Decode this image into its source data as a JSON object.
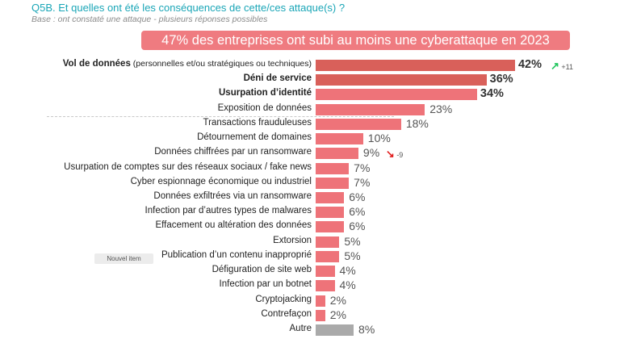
{
  "header": {
    "question": "Q5B. Et quelles ont été les conséquences de cette/ces attaque(s) ?",
    "base": "Base : ont constaté une attaque - plusieurs réponses possibles",
    "banner": "47% des entreprises ont subi au moins une cyberattaque en 2023"
  },
  "badge": "Nouvel item",
  "colors": {
    "title": "#1aa6b7",
    "banner": "#ef7b80",
    "bar_top": "#d9605a",
    "bar": "#ee7379",
    "bar_other": "#aaaaaa",
    "up": "#22c55e",
    "down": "#e11d1d"
  },
  "chart_data": {
    "type": "bar",
    "orientation": "horizontal",
    "unit": "%",
    "categories": [
      {
        "bold": "Vol de données",
        "rest": " (personnelles et/ou stratégiques ou techniques)"
      },
      {
        "bold": "Déni de service",
        "rest": ""
      },
      {
        "bold": "Usurpation d’identité",
        "rest": ""
      },
      {
        "bold": "",
        "rest": "Exposition de données"
      },
      {
        "bold": "",
        "rest": "Transactions frauduleuses"
      },
      {
        "bold": "",
        "rest": "Détournement de domaines"
      },
      {
        "bold": "",
        "rest": "Données chiffrées par un ransomware"
      },
      {
        "bold": "",
        "rest": "Usurpation de comptes sur des réseaux sociaux / fake news"
      },
      {
        "bold": "",
        "rest": "Cyber espionnage économique ou industriel"
      },
      {
        "bold": "",
        "rest": "Données exfiltrées via un ransomware"
      },
      {
        "bold": "",
        "rest": "Infection par d’autres types de malwares"
      },
      {
        "bold": "",
        "rest": "Effacement ou altération des données"
      },
      {
        "bold": "",
        "rest": "Extorsion"
      },
      {
        "bold": "",
        "rest": "Publication d’un contenu inapproprié"
      },
      {
        "bold": "",
        "rest": "Défiguration de site web"
      },
      {
        "bold": "",
        "rest": "Infection par un botnet"
      },
      {
        "bold": "",
        "rest": "Cryptojacking"
      },
      {
        "bold": "",
        "rest": "Contrefaçon"
      },
      {
        "bold": "",
        "rest": "Autre"
      }
    ],
    "values": [
      42,
      36,
      34,
      23,
      18,
      10,
      9,
      7,
      7,
      6,
      6,
      6,
      5,
      5,
      4,
      4,
      2,
      2,
      8
    ],
    "value_labels": [
      "42%",
      "36%",
      "34%",
      "23%",
      "18%",
      "10%",
      "9%",
      "7%",
      "7%",
      "6%",
      "6%",
      "6%",
      "5%",
      "5%",
      "4%",
      "4%",
      "2%",
      "2%",
      "8%"
    ],
    "changes": [
      {
        "index": 0,
        "label": "+11",
        "direction": "up"
      },
      {
        "index": 6,
        "label": "-9",
        "direction": "down"
      }
    ],
    "xlim": [
      0,
      45
    ],
    "grid": false
  }
}
